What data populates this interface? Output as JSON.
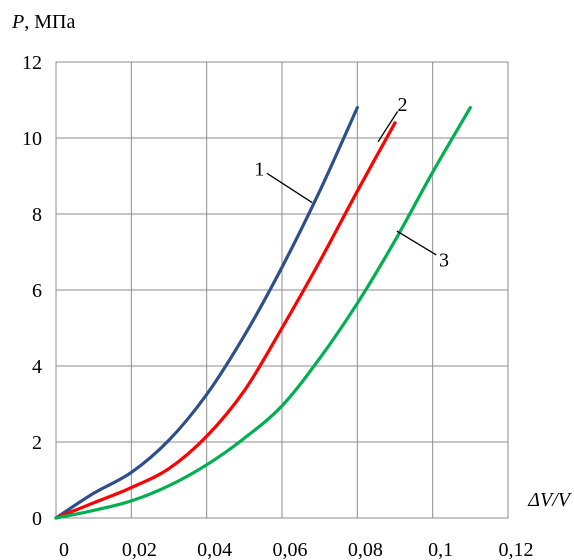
{
  "chart_data": {
    "type": "line",
    "ylabel_var": "P",
    "ylabel_unit": ", МПа",
    "xlabel": "ΔV/V",
    "xlim": [
      0,
      0.12
    ],
    "ylim": [
      0,
      12
    ],
    "xticks": [
      0,
      0.02,
      0.04,
      0.06,
      0.08,
      0.1,
      0.12
    ],
    "xtick_labels": [
      "0",
      "0,02",
      "0,04",
      "0,06",
      "0,08",
      "0,1",
      "0,12"
    ],
    "yticks": [
      0,
      2,
      4,
      6,
      8,
      10,
      12
    ],
    "ytick_labels": [
      "0",
      "2",
      "4",
      "6",
      "8",
      "10",
      "12"
    ],
    "grid": true,
    "series": [
      {
        "name": "1",
        "color": "#2f4e8c",
        "x": [
          0,
          0.01,
          0.02,
          0.03,
          0.04,
          0.05,
          0.06,
          0.07,
          0.08
        ],
        "y": [
          0,
          0.65,
          1.2,
          2.05,
          3.25,
          4.8,
          6.6,
          8.6,
          10.8
        ],
        "label_at": [
          0.068,
          8.3
        ],
        "label_pos": [
          0.054,
          9.2
        ]
      },
      {
        "name": "2",
        "color": "#ff0000",
        "x": [
          0,
          0.01,
          0.02,
          0.03,
          0.04,
          0.05,
          0.06,
          0.07,
          0.08,
          0.09
        ],
        "y": [
          0,
          0.4,
          0.8,
          1.3,
          2.15,
          3.35,
          5.0,
          6.75,
          8.6,
          10.4
        ],
        "label_at": [
          0.0855,
          9.9
        ],
        "label_pos": [
          0.092,
          10.9
        ]
      },
      {
        "name": "3",
        "color": "#00b050",
        "x": [
          0,
          0.01,
          0.02,
          0.03,
          0.04,
          0.05,
          0.06,
          0.07,
          0.08,
          0.09,
          0.1,
          0.11
        ],
        "y": [
          0,
          0.2,
          0.45,
          0.85,
          1.4,
          2.1,
          2.95,
          4.2,
          5.65,
          7.3,
          9.1,
          10.8
        ],
        "label_at": [
          0.0905,
          7.55
        ],
        "label_pos": [
          0.103,
          6.8
        ]
      }
    ]
  }
}
